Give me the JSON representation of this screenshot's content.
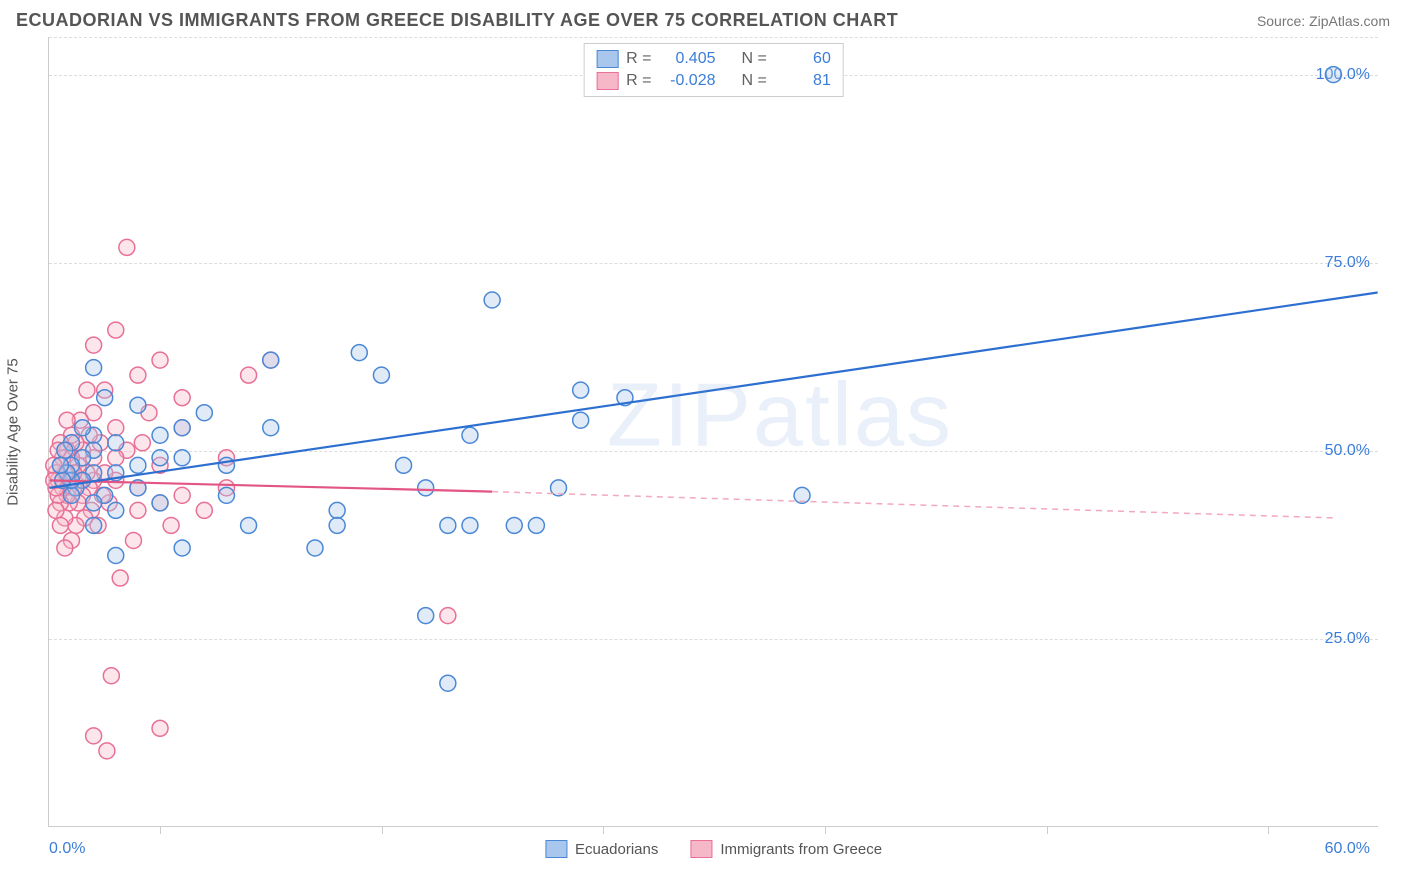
{
  "title": "ECUADORIAN VS IMMIGRANTS FROM GREECE DISABILITY AGE OVER 75 CORRELATION CHART",
  "source": "Source: ZipAtlas.com",
  "watermark": "ZIPatlas",
  "yaxis_title": "Disability Age Over 75",
  "chart": {
    "type": "scatter",
    "xlim": [
      0,
      60
    ],
    "ylim": [
      0,
      105
    ],
    "x_label_min": "0.0%",
    "x_label_max": "60.0%",
    "y_ticks": [
      25,
      50,
      75,
      100
    ],
    "y_tick_labels": [
      "25.0%",
      "50.0%",
      "75.0%",
      "100.0%"
    ],
    "x_tick_positions": [
      5,
      15,
      25,
      35,
      45,
      55
    ],
    "grid_color": "#dddddd",
    "axis_color": "#cccccc",
    "background": "#ffffff",
    "series": [
      {
        "name": "Ecuadorians",
        "fill": "#a9c7ec",
        "stroke": "#4a88d6",
        "r_value": "0.405",
        "n_value": "60",
        "marker_radius": 8,
        "trend": {
          "x1": 0,
          "y1": 45,
          "x2": 60,
          "y2": 71,
          "color": "#2d6fd0"
        },
        "points": [
          [
            58,
            100
          ],
          [
            20,
            70
          ],
          [
            24,
            58
          ],
          [
            24,
            54
          ],
          [
            14,
            63
          ],
          [
            15,
            60
          ],
          [
            10,
            62
          ],
          [
            10,
            53
          ],
          [
            9,
            40
          ],
          [
            12,
            37
          ],
          [
            13,
            42
          ],
          [
            13,
            40
          ],
          [
            16,
            48
          ],
          [
            17,
            45
          ],
          [
            18,
            40
          ],
          [
            18,
            19
          ],
          [
            19,
            40
          ],
          [
            19,
            52
          ],
          [
            21,
            40
          ],
          [
            22,
            40
          ],
          [
            23,
            45
          ],
          [
            26,
            57
          ],
          [
            34,
            44
          ],
          [
            17,
            28
          ],
          [
            8,
            48
          ],
          [
            8,
            44
          ],
          [
            7,
            55
          ],
          [
            6,
            49
          ],
          [
            6,
            37
          ],
          [
            6,
            53
          ],
          [
            5,
            43
          ],
          [
            5,
            49
          ],
          [
            5,
            52
          ],
          [
            4,
            56
          ],
          [
            4,
            48
          ],
          [
            4,
            45
          ],
          [
            3,
            42
          ],
          [
            3,
            47
          ],
          [
            3,
            51
          ],
          [
            3,
            36
          ],
          [
            2.5,
            57
          ],
          [
            2.5,
            44
          ],
          [
            2,
            52
          ],
          [
            2,
            47
          ],
          [
            2,
            50
          ],
          [
            2,
            43
          ],
          [
            2,
            61
          ],
          [
            2,
            40
          ],
          [
            1.5,
            46
          ],
          [
            1.5,
            49
          ],
          [
            1.5,
            53
          ],
          [
            1.2,
            45
          ],
          [
            1,
            48
          ],
          [
            1,
            44
          ],
          [
            1,
            51
          ],
          [
            1,
            46
          ],
          [
            0.8,
            47
          ],
          [
            0.7,
            50
          ],
          [
            0.6,
            46
          ],
          [
            0.5,
            48
          ]
        ]
      },
      {
        "name": "Immigrants from Greece",
        "fill": "#f6b8c9",
        "stroke": "#e87096",
        "r_value": "-0.028",
        "n_value": "81",
        "marker_radius": 8,
        "trend_solid": {
          "x1": 0,
          "y1": 46,
          "x2": 20,
          "y2": 44.5,
          "color": "#e25584"
        },
        "trend_dash": {
          "x1": 20,
          "y1": 44.5,
          "x2": 58,
          "y2": 41,
          "color": "#f2a8bd"
        },
        "points": [
          [
            18,
            28
          ],
          [
            10,
            62
          ],
          [
            9,
            60
          ],
          [
            8,
            49
          ],
          [
            8,
            45
          ],
          [
            7,
            42
          ],
          [
            6,
            57
          ],
          [
            6,
            53
          ],
          [
            6,
            44
          ],
          [
            5.5,
            40
          ],
          [
            5,
            62
          ],
          [
            5,
            48
          ],
          [
            5,
            43
          ],
          [
            5,
            13
          ],
          [
            4.5,
            55
          ],
          [
            4.2,
            51
          ],
          [
            4,
            60
          ],
          [
            4,
            42
          ],
          [
            4,
            45
          ],
          [
            3.8,
            38
          ],
          [
            3.5,
            50
          ],
          [
            3.5,
            77
          ],
          [
            3.2,
            33
          ],
          [
            3,
            66
          ],
          [
            3,
            46
          ],
          [
            3,
            49
          ],
          [
            3,
            53
          ],
          [
            2.8,
            20
          ],
          [
            2.7,
            43
          ],
          [
            2.6,
            10
          ],
          [
            2.5,
            47
          ],
          [
            2.5,
            58
          ],
          [
            2.4,
            44
          ],
          [
            2.3,
            51
          ],
          [
            2.2,
            40
          ],
          [
            2,
            12
          ],
          [
            2,
            46
          ],
          [
            2,
            55
          ],
          [
            2,
            64
          ],
          [
            2,
            49
          ],
          [
            1.9,
            42
          ],
          [
            1.8,
            52
          ],
          [
            1.8,
            45
          ],
          [
            1.7,
            47
          ],
          [
            1.7,
            58
          ],
          [
            1.6,
            41
          ],
          [
            1.5,
            50
          ],
          [
            1.5,
            44
          ],
          [
            1.4,
            46
          ],
          [
            1.4,
            54
          ],
          [
            1.3,
            48
          ],
          [
            1.3,
            43
          ],
          [
            1.2,
            51
          ],
          [
            1.2,
            40
          ],
          [
            1.1,
            47
          ],
          [
            1.1,
            45
          ],
          [
            1.0,
            49
          ],
          [
            1.0,
            38
          ],
          [
            1.0,
            52
          ],
          [
            0.9,
            46
          ],
          [
            0.9,
            43
          ],
          [
            0.8,
            50
          ],
          [
            0.8,
            44
          ],
          [
            0.8,
            54
          ],
          [
            0.7,
            37
          ],
          [
            0.7,
            47
          ],
          [
            0.7,
            41
          ],
          [
            0.6,
            49
          ],
          [
            0.6,
            45
          ],
          [
            0.5,
            48
          ],
          [
            0.5,
            43
          ],
          [
            0.5,
            51
          ],
          [
            0.5,
            40
          ],
          [
            0.4,
            46
          ],
          [
            0.4,
            44
          ],
          [
            0.4,
            50
          ],
          [
            0.3,
            47
          ],
          [
            0.3,
            45
          ],
          [
            0.3,
            42
          ],
          [
            0.2,
            48
          ],
          [
            0.2,
            46
          ]
        ]
      }
    ]
  },
  "stats_legend_labels": {
    "r": "R =",
    "n": "N ="
  },
  "bottom_legend": [
    "Ecuadorians",
    "Immigrants from Greece"
  ]
}
